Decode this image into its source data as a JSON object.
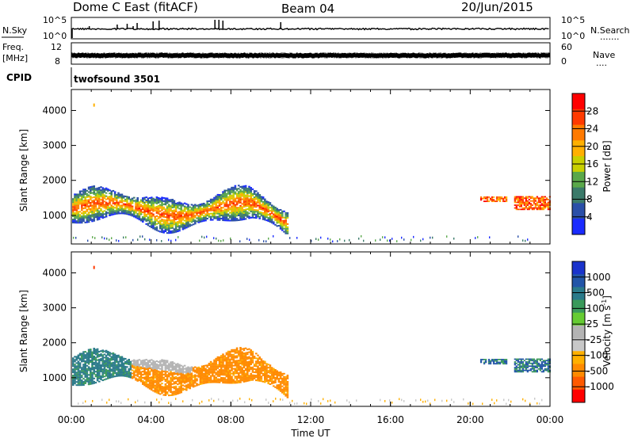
{
  "header": {
    "station": "Dome C East (fitACF)",
    "beam": "Beam 04",
    "date": "20/Jun/2015"
  },
  "top_panels": {
    "nsky_label": "N.Sky",
    "nsky_ticks": [
      "10^5",
      "10^0"
    ],
    "nsearch_label": "N.Search",
    "nsearch_ticks": [
      "10^5",
      "10^0"
    ],
    "freq_label_1": "Freq.",
    "freq_label_2": "[MHz]",
    "freq_ticks": [
      "12",
      "8"
    ],
    "nave_label": "Nave",
    "nave_ticks": [
      "60",
      "0"
    ],
    "cpid_label": "CPID",
    "cpid_value": "twofsound 3501"
  },
  "colors": {
    "power": [
      "#1a2bff",
      "#2a4fa8",
      "#3b7a6a",
      "#5aa84a",
      "#c8d000",
      "#ffb000",
      "#ff7a00",
      "#ff3a00",
      "#ff0000"
    ],
    "velocity": [
      "#ff0000",
      "#ff5a00",
      "#ff8a00",
      "#ffb000",
      "#c8c8c8",
      "#b4b4b4",
      "#66cc33",
      "#3a9a5a",
      "#2a7a8a",
      "#2255a8",
      "#1a33cc"
    ]
  },
  "chart_data": [
    {
      "type": "heatmap",
      "name": "power-panel",
      "ylabel": "Slant Range [km]",
      "xlabel": "",
      "x_ticks": [
        "00:00",
        "04:00",
        "08:00",
        "12:00",
        "16:00",
        "20:00",
        "00:00"
      ],
      "xlim_hours": [
        0,
        24
      ],
      "ylim_km": [
        180,
        4600
      ],
      "y_ticks": [
        1000,
        2000,
        3000,
        4000
      ],
      "colorbar_label": "Power [dB]",
      "colorbar_ticks": [
        "28",
        "24",
        "20",
        "16",
        "12",
        "8",
        "4"
      ],
      "colorbar_range": [
        0,
        30
      ]
    },
    {
      "type": "heatmap",
      "name": "velocity-panel",
      "ylabel": "Slant Range [km]",
      "xlabel": "Time UT",
      "x_ticks": [
        "00:00",
        "04:00",
        "08:00",
        "12:00",
        "16:00",
        "20:00",
        "00:00"
      ],
      "xlim_hours": [
        0,
        24
      ],
      "ylim_km": [
        180,
        4600
      ],
      "y_ticks": [
        1000,
        2000,
        3000,
        4000
      ],
      "colorbar_label": "Velocity [m s^-1]",
      "colorbar_ticks": [
        "1000",
        "500",
        "100",
        "25",
        "-25",
        "-100",
        "-500",
        "-1000"
      ],
      "colorbar_range": [
        -1200,
        1200
      ]
    }
  ]
}
